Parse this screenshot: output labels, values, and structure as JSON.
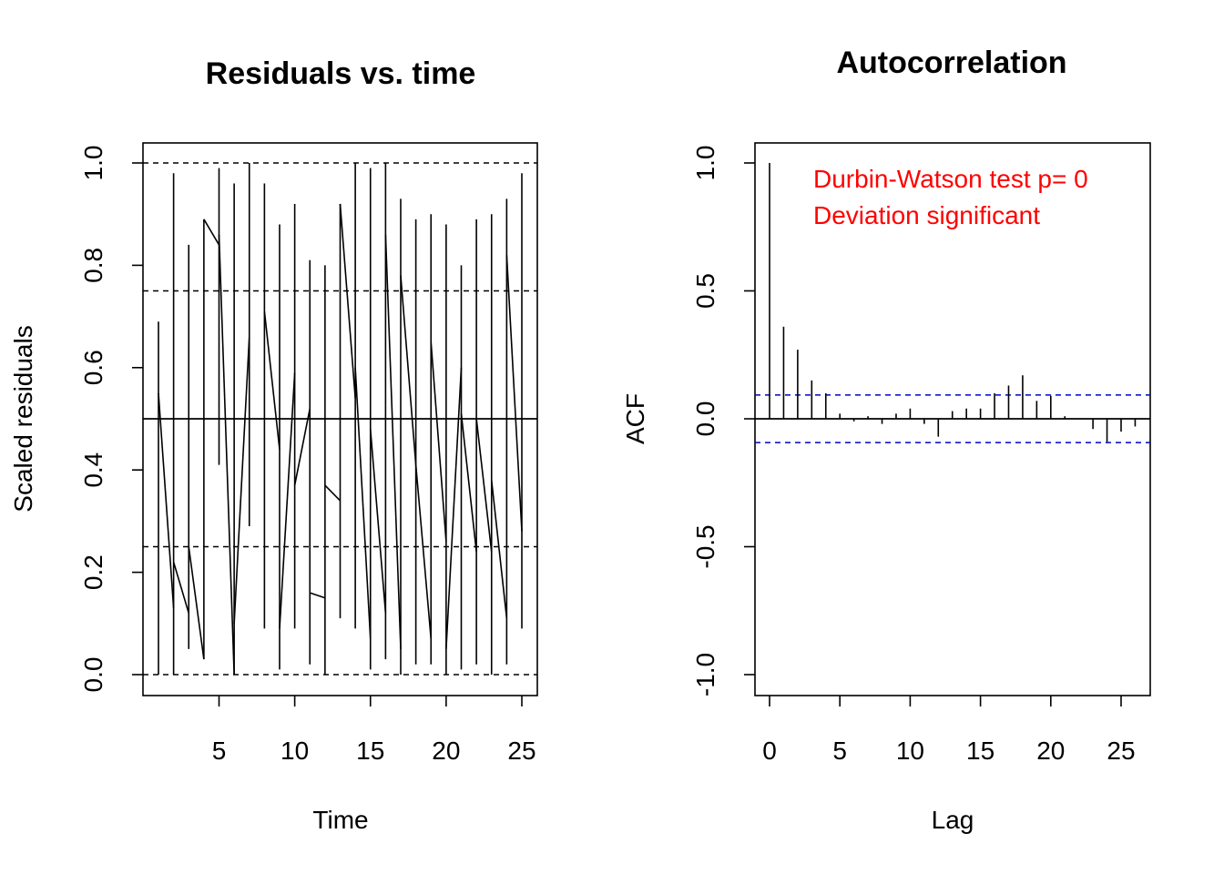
{
  "chart_data": [
    {
      "type": "line",
      "title": "Residuals vs. time",
      "xlabel": "Time",
      "ylabel": "Scaled residuals",
      "xlim": [
        0,
        26
      ],
      "ylim": [
        0,
        1
      ],
      "x_ticks": [
        "5",
        "10",
        "15",
        "20",
        "25"
      ],
      "y_ticks": [
        "0.0",
        "0.2",
        "0.4",
        "0.6",
        "0.8",
        "1.0"
      ],
      "reference_lines": {
        "solid": [
          0.5
        ],
        "dashed": [
          0,
          0.25,
          0.75,
          1
        ]
      },
      "series": [
        {
          "segments": [
            {
              "x": 1,
              "y1": 0.69,
              "y2": 0.0
            },
            {
              "x": 2,
              "y1": 0.98,
              "y2": 0.0
            },
            {
              "x": 3,
              "y1": 0.84,
              "y2": 0.05
            },
            {
              "x": 4,
              "y1": 0.89,
              "y2": 0.03
            },
            {
              "x": 5,
              "y1": 0.99,
              "y2": 0.41
            },
            {
              "x": 6,
              "y1": 0.96,
              "y2": 0.0
            },
            {
              "x": 7,
              "y1": 1.0,
              "y2": 0.29
            },
            {
              "x": 8,
              "y1": 0.96,
              "y2": 0.09
            },
            {
              "x": 9,
              "y1": 0.88,
              "y2": 0.01
            },
            {
              "x": 10,
              "y1": 0.92,
              "y2": 0.09
            },
            {
              "x": 11,
              "y1": 0.81,
              "y2": 0.02
            },
            {
              "x": 12,
              "y1": 0.8,
              "y2": 0.0
            },
            {
              "x": 13,
              "y1": 0.92,
              "y2": 0.11
            },
            {
              "x": 14,
              "y1": 1.0,
              "y2": 0.09
            },
            {
              "x": 15,
              "y1": 0.99,
              "y2": 0.01
            },
            {
              "x": 16,
              "y1": 1.0,
              "y2": 0.03
            },
            {
              "x": 17,
              "y1": 0.93,
              "y2": 0.0
            },
            {
              "x": 18,
              "y1": 0.89,
              "y2": 0.02
            },
            {
              "x": 19,
              "y1": 0.9,
              "y2": 0.02
            },
            {
              "x": 20,
              "y1": 0.88,
              "y2": 0.0
            },
            {
              "x": 21,
              "y1": 0.8,
              "y2": 0.01
            },
            {
              "x": 22,
              "y1": 0.89,
              "y2": 0.02
            },
            {
              "x": 23,
              "y1": 0.9,
              "y2": 0.0
            },
            {
              "x": 24,
              "y1": 0.93,
              "y2": 0.02
            },
            {
              "x": 25,
              "y1": 0.98,
              "y2": 0.09
            }
          ],
          "connectors": [
            [
              1,
              0.55,
              2,
              0.13
            ],
            [
              2,
              0.22,
              3,
              0.12
            ],
            [
              3,
              0.25,
              4,
              0.03
            ],
            [
              4,
              0.89,
              5,
              0.84
            ],
            [
              5,
              0.86,
              6,
              0.0
            ],
            [
              6,
              0.1,
              7,
              0.66
            ],
            [
              8,
              0.71,
              9,
              0.44
            ],
            [
              9,
              0.09,
              10,
              0.59
            ],
            [
              10,
              0.37,
              11,
              0.52
            ],
            [
              11,
              0.16,
              12,
              0.15
            ],
            [
              12,
              0.37,
              13,
              0.34
            ],
            [
              13,
              0.92,
              14,
              0.54
            ],
            [
              14,
              0.6,
              15,
              0.07
            ],
            [
              15,
              0.48,
              16,
              0.12
            ],
            [
              16,
              0.86,
              17,
              0.05
            ],
            [
              17,
              0.78,
              18,
              0.41
            ],
            [
              18,
              0.41,
              19,
              0.07
            ],
            [
              19,
              0.65,
              20,
              0.26
            ],
            [
              20,
              0.05,
              21,
              0.6
            ],
            [
              21,
              0.51,
              22,
              0.24
            ],
            [
              22,
              0.5,
              23,
              0.24
            ],
            [
              23,
              0.38,
              24,
              0.11
            ],
            [
              24,
              0.82,
              25,
              0.28
            ]
          ]
        }
      ]
    },
    {
      "type": "bar",
      "title": "Autocorrelation",
      "xlabel": "Lag",
      "ylabel": "ACF",
      "xlim": [
        -1,
        27
      ],
      "ylim": [
        -1.05,
        1.05
      ],
      "x_ticks": [
        "0",
        "5",
        "10",
        "15",
        "20",
        "25"
      ],
      "y_ticks": [
        "-1.0",
        "-0.5",
        "0.0",
        "0.5",
        "1.0"
      ],
      "lags": [
        0,
        1,
        2,
        3,
        4,
        5,
        6,
        7,
        8,
        9,
        10,
        11,
        12,
        13,
        14,
        15,
        16,
        17,
        18,
        19,
        20,
        21,
        22,
        23,
        24,
        25,
        26
      ],
      "values": [
        1.0,
        0.36,
        0.27,
        0.15,
        0.1,
        0.02,
        -0.01,
        0.01,
        -0.02,
        0.02,
        0.04,
        -0.02,
        -0.07,
        0.03,
        0.04,
        0.04,
        0.1,
        0.13,
        0.17,
        0.07,
        0.09,
        0.01,
        0.0,
        -0.04,
        -0.09,
        -0.05,
        -0.03
      ],
      "confidence_band": [
        -0.093,
        0.093
      ],
      "annotations": [
        "Durbin-Watson test  p= 0",
        "Deviation  significant"
      ]
    }
  ],
  "colors": {
    "axes": "#000000",
    "annotation": "#ff0000",
    "confidence_band": "#0000cc"
  }
}
